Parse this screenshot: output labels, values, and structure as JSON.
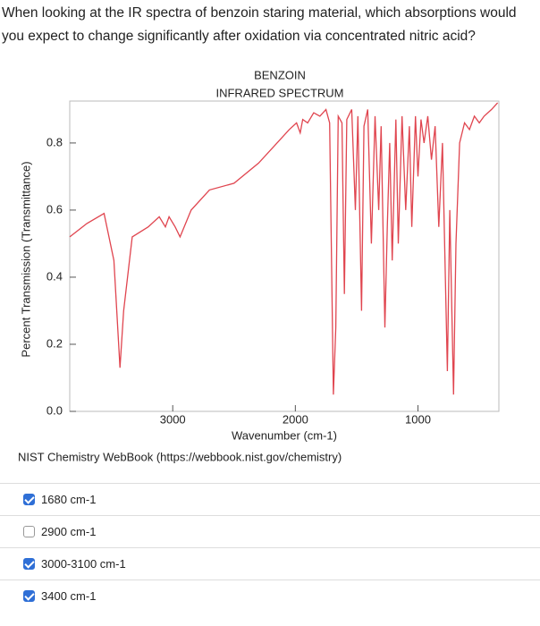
{
  "question": "When looking at the IR spectra of benzoin staring material, which absorptions would you expect to change significantly after oxidation via concentrated nitric acid?",
  "chart_data": {
    "type": "line",
    "title": "BENZOIN",
    "subtitle": "INFRARED SPECTRUM",
    "x_label": "Wavenumber (cm-1)",
    "y_label": "Percent Transmission (Transmittance)",
    "source": "NIST Chemistry WebBook (https://webbook.nist.gov/chemistry)",
    "xlim": [
      3840,
      340
    ],
    "ylim": [
      0,
      0.925
    ],
    "xticks": [
      3000,
      2000,
      1000
    ],
    "yticks": [
      {
        "value": 0,
        "label": "0.0"
      },
      0.2,
      0.4,
      0.6,
      0.8
    ],
    "grid": false,
    "series": [
      {
        "color": "#e0454f",
        "x": [
          3840,
          3700,
          3560,
          3480,
          3430,
          3400,
          3330,
          3200,
          3110,
          3060,
          3030,
          2980,
          2940,
          2850,
          2700,
          2500,
          2300,
          2150,
          2050,
          1990,
          1960,
          1940,
          1900,
          1850,
          1800,
          1750,
          1720,
          1690,
          1670,
          1650,
          1620,
          1600,
          1580,
          1540,
          1510,
          1490,
          1460,
          1440,
          1410,
          1380,
          1350,
          1320,
          1300,
          1270,
          1250,
          1230,
          1210,
          1180,
          1160,
          1130,
          1100,
          1070,
          1050,
          1020,
          1000,
          975,
          950,
          920,
          890,
          860,
          830,
          800,
          760,
          740,
          710,
          690,
          660,
          620,
          580,
          540,
          500,
          460,
          400,
          350
        ],
        "values": [
          0.52,
          0.56,
          0.59,
          0.45,
          0.13,
          0.3,
          0.52,
          0.55,
          0.58,
          0.55,
          0.58,
          0.55,
          0.52,
          0.6,
          0.66,
          0.68,
          0.74,
          0.8,
          0.84,
          0.86,
          0.83,
          0.87,
          0.86,
          0.89,
          0.88,
          0.9,
          0.86,
          0.05,
          0.25,
          0.88,
          0.86,
          0.35,
          0.87,
          0.9,
          0.6,
          0.88,
          0.3,
          0.85,
          0.9,
          0.5,
          0.88,
          0.6,
          0.85,
          0.25,
          0.55,
          0.8,
          0.45,
          0.87,
          0.5,
          0.88,
          0.6,
          0.85,
          0.55,
          0.88,
          0.7,
          0.87,
          0.8,
          0.88,
          0.75,
          0.85,
          0.55,
          0.8,
          0.12,
          0.6,
          0.05,
          0.5,
          0.8,
          0.86,
          0.84,
          0.88,
          0.86,
          0.88,
          0.9,
          0.92
        ]
      }
    ]
  },
  "options": [
    {
      "label": "1680 cm-1",
      "checked": true
    },
    {
      "label": "2900 cm-1",
      "checked": false
    },
    {
      "label": "3000-3100 cm-1",
      "checked": true
    },
    {
      "label": "3400 cm-1",
      "checked": true
    }
  ]
}
